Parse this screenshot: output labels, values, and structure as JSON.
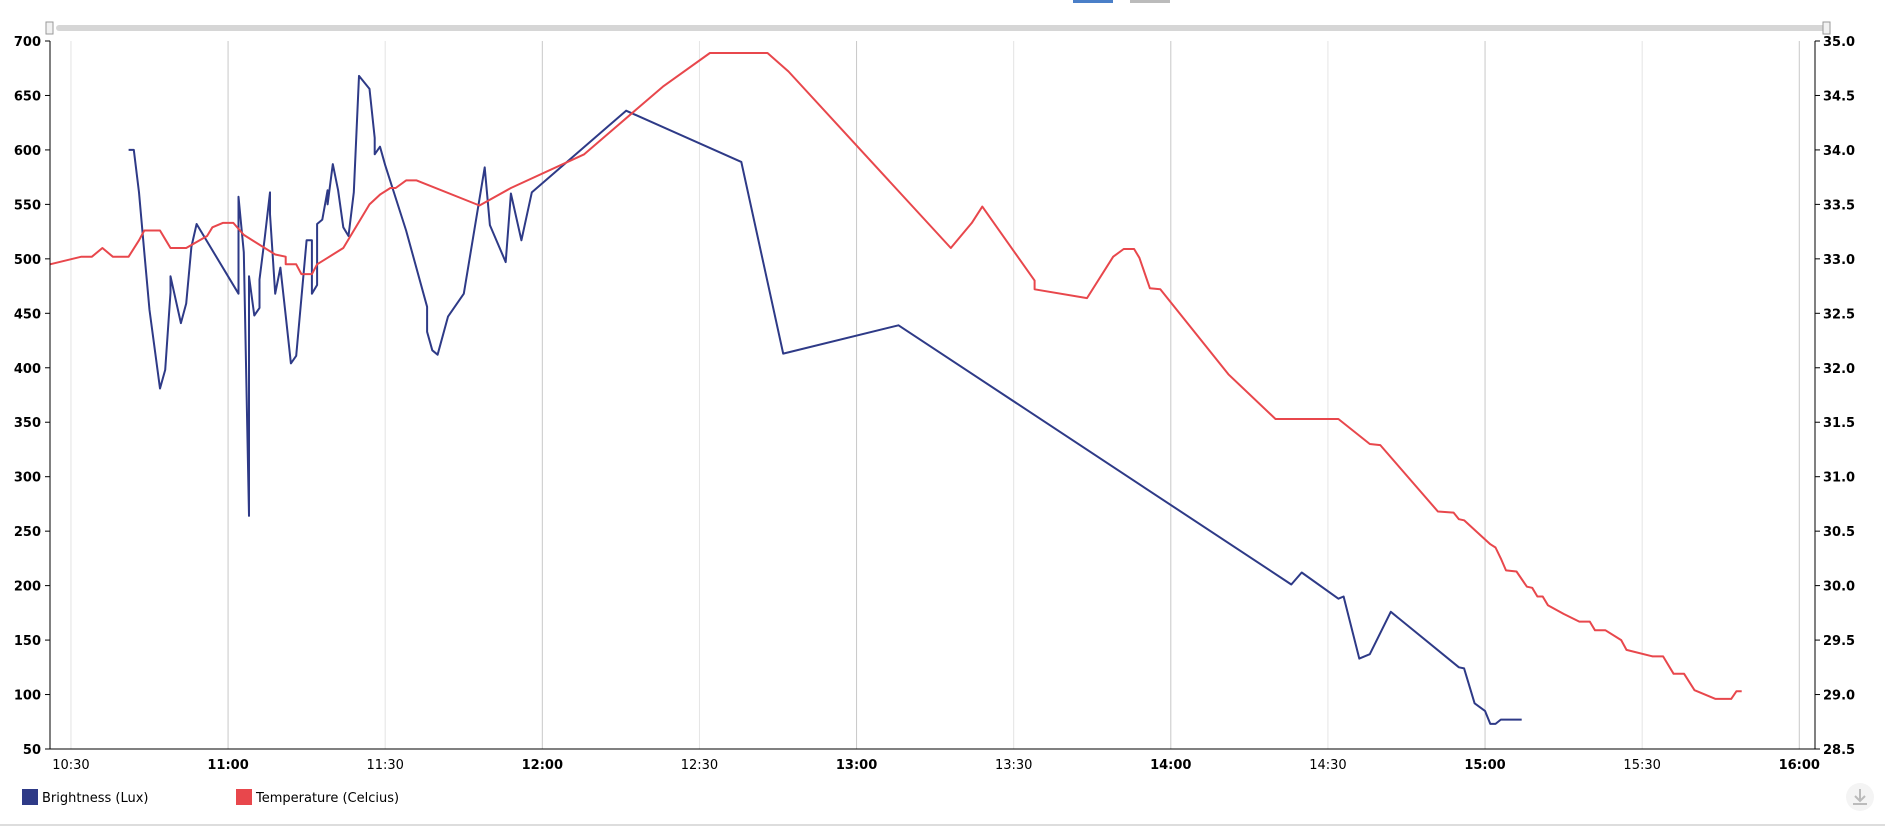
{
  "chart_data": {
    "type": "line",
    "xlim": [
      "10:26",
      "16:03"
    ],
    "xticks": [
      "10:30",
      "11:00",
      "11:30",
      "12:00",
      "12:30",
      "13:00",
      "13:30",
      "14:00",
      "14:30",
      "15:00",
      "15:30",
      "16:00"
    ],
    "ylim": [
      50,
      700
    ],
    "yticks": [
      50,
      100,
      150,
      200,
      250,
      300,
      350,
      400,
      450,
      500,
      550,
      600,
      650,
      700
    ],
    "y2lim": [
      28.5,
      35
    ],
    "y2ticks": [
      28.5,
      {
        "value": 29,
        "label": "29.0"
      },
      29.5,
      {
        "value": 30,
        "label": "30.0"
      },
      30.5,
      {
        "value": 31,
        "label": "31.0"
      },
      31.5,
      {
        "value": 32,
        "label": "32.0"
      },
      32.5,
      {
        "value": 33,
        "label": "33.0"
      },
      33.5,
      {
        "value": 34,
        "label": "34.0"
      },
      34.5,
      {
        "value": 35,
        "label": "35.0"
      }
    ],
    "grid": true,
    "legend": "bottom-left",
    "series": [
      {
        "name": "Brightness (Lux)",
        "color": "#2e3a87",
        "axis": "y",
        "x": [
          "10:41",
          "10:42",
          "10:43",
          "10:44",
          "10:45",
          "10:47",
          "10:48",
          "10:49",
          "10:49",
          "10:51",
          "10:52",
          "10:53",
          "10:54",
          "11:02",
          "11:02",
          "11:03",
          "11:04",
          "11:04",
          "11:05",
          "11:06",
          "11:06",
          "11:07",
          "11:08",
          "11:08",
          "11:09",
          "11:10",
          "11:11",
          "11:12",
          "11:13",
          "11:15",
          "11:16",
          "11:16",
          "11:17",
          "11:17",
          "11:18",
          "11:19",
          "11:19",
          "11:20",
          "11:21",
          "11:22",
          "11:23",
          "11:24",
          "11:25",
          "11:27",
          "11:28",
          "11:28",
          "11:29",
          "11:30",
          "11:34",
          "11:38",
          "11:38",
          "11:39",
          "11:40",
          "11:42",
          "11:45",
          "11:49",
          "11:50",
          "11:53",
          "11:54",
          "11:56",
          "11:58",
          "12:16",
          "12:38",
          "12:46",
          "13:08",
          "14:23",
          "14:25",
          "14:32",
          "14:33",
          "14:36",
          "14:38",
          "14:42",
          "14:55",
          "14:56",
          "14:58",
          "15:00",
          "15:01",
          "15:02",
          "15:03",
          "15:07"
        ],
        "values": [
          600,
          600,
          561,
          506,
          453,
          381,
          398,
          469,
          484,
          441,
          459,
          511,
          532,
          468,
          557,
          506,
          264,
          484,
          448,
          455,
          481,
          519,
          561,
          541,
          468,
          492,
          448,
          404,
          411,
          517,
          517,
          468,
          476,
          532,
          536,
          563,
          550,
          587,
          563,
          529,
          521,
          561,
          668,
          656,
          611,
          596,
          603,
          586,
          526,
          456,
          433,
          416,
          412,
          447,
          468,
          584,
          531,
          497,
          560,
          517,
          561,
          636,
          589,
          413,
          439,
          201,
          212,
          188,
          190,
          133,
          137,
          176,
          125,
          124,
          92,
          85,
          73,
          73,
          77,
          77
        ]
      },
      {
        "name": "Temperature (Celcius)",
        "color": "#e8474c",
        "axis": "y2",
        "x": [
          "10:26",
          "10:32",
          "10:34",
          "10:36",
          "10:38",
          "10:41",
          "10:43",
          "10:44",
          "10:47",
          "10:48",
          "10:49",
          "10:52",
          "10:56",
          "10:57",
          "10:59",
          "11:01",
          "11:03",
          "11:09",
          "11:11",
          "11:11",
          "11:13",
          "11:14",
          "11:16",
          "11:17",
          "11:19",
          "11:22",
          "11:27",
          "11:29",
          "11:31",
          "11:32",
          "11:34",
          "11:36",
          "11:48",
          "11:54",
          "12:08",
          "12:23",
          "12:32",
          "12:43",
          "12:47",
          "13:18",
          "13:22",
          "13:24",
          "13:34",
          "13:34",
          "13:44",
          "13:49",
          "13:51",
          "13:53",
          "13:54",
          "13:56",
          "13:58",
          "14:11",
          "14:20",
          "14:32",
          "14:38",
          "14:40",
          "14:51",
          "14:54",
          "14:55",
          "14:56",
          "15:01",
          "15:02",
          "15:03",
          "15:04",
          "15:06",
          "15:08",
          "15:09",
          "15:10",
          "15:11",
          "15:12",
          "15:15",
          "15:18",
          "15:20",
          "15:21",
          "15:23",
          "15:26",
          "15:27",
          "15:32",
          "15:34",
          "15:36",
          "15:38",
          "15:40",
          "15:44",
          "15:47",
          "15:48",
          "15:49"
        ],
        "values": [
          32.95,
          33.02,
          33.02,
          33.1,
          33.02,
          33.02,
          33.17,
          33.26,
          33.26,
          33.18,
          33.1,
          33.1,
          33.21,
          33.29,
          33.33,
          33.33,
          33.22,
          33.04,
          33.02,
          32.95,
          32.95,
          32.86,
          32.86,
          32.95,
          33.01,
          33.1,
          33.5,
          33.59,
          33.65,
          33.65,
          33.72,
          33.72,
          33.49,
          33.65,
          33.96,
          34.58,
          34.89,
          34.89,
          34.72,
          33.1,
          33.33,
          33.48,
          32.8,
          32.72,
          32.64,
          33.02,
          33.09,
          33.09,
          33.01,
          32.73,
          32.72,
          31.94,
          31.53,
          31.53,
          31.3,
          31.29,
          30.68,
          30.67,
          30.61,
          30.6,
          30.38,
          30.35,
          30.25,
          30.14,
          30.13,
          29.99,
          29.98,
          29.9,
          29.9,
          29.82,
          29.74,
          29.67,
          29.67,
          29.59,
          29.59,
          29.5,
          29.41,
          29.35,
          29.35,
          29.19,
          29.19,
          29.04,
          28.96,
          28.96,
          29.03,
          29.03
        ]
      }
    ]
  }
}
